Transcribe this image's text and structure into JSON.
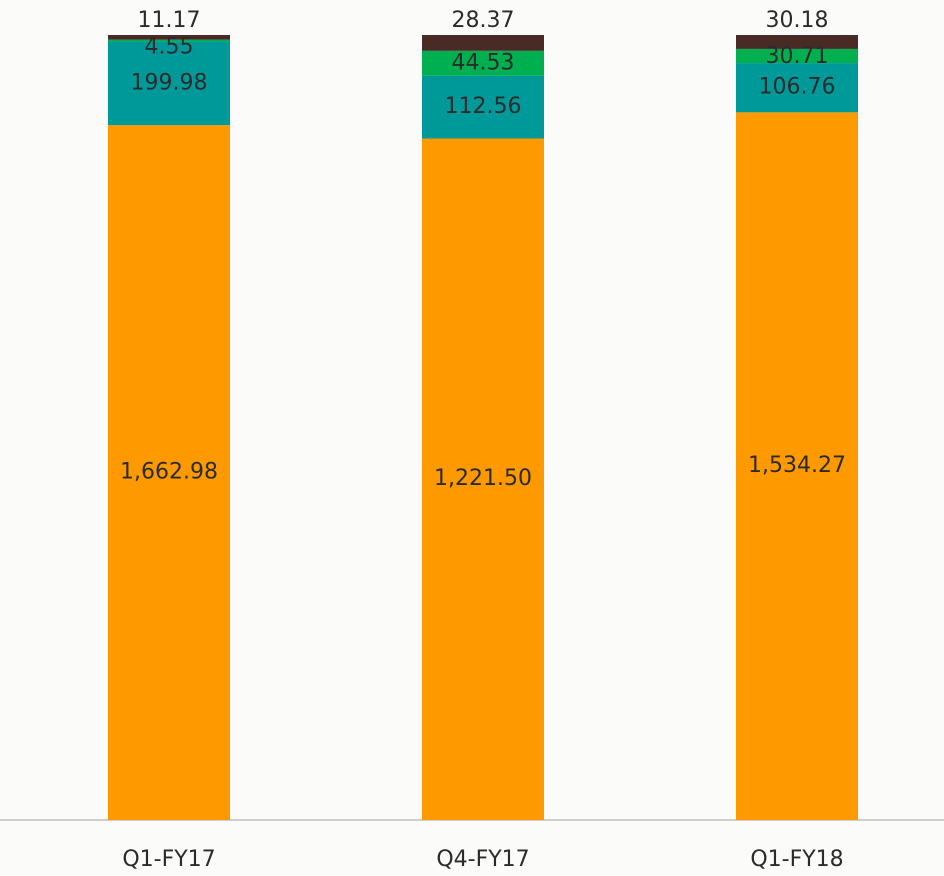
{
  "chart_data": {
    "type": "bar",
    "stacked": "percent",
    "categories": [
      "Q1-FY17",
      "Q4-FY17",
      "Q1-FY18"
    ],
    "series": [
      {
        "color": "#ff9900",
        "values": [
          1662.98,
          1221.5,
          1534.27
        ],
        "value_labels": [
          "1,662.98",
          "1,221.50",
          "1,534.27"
        ],
        "label_color": "#2b2b2b"
      },
      {
        "color": "#009999",
        "values": [
          199.98,
          112.56,
          106.76
        ],
        "label_color": "#2b2b2b"
      },
      {
        "color": "#00b050",
        "values": [
          4.55,
          44.53,
          30.71
        ],
        "label_color": "#ffffff"
      },
      {
        "color": "#4a2a25",
        "values": [
          11.17,
          28.37,
          30.18
        ],
        "label_color": "#ffffff"
      }
    ]
  }
}
